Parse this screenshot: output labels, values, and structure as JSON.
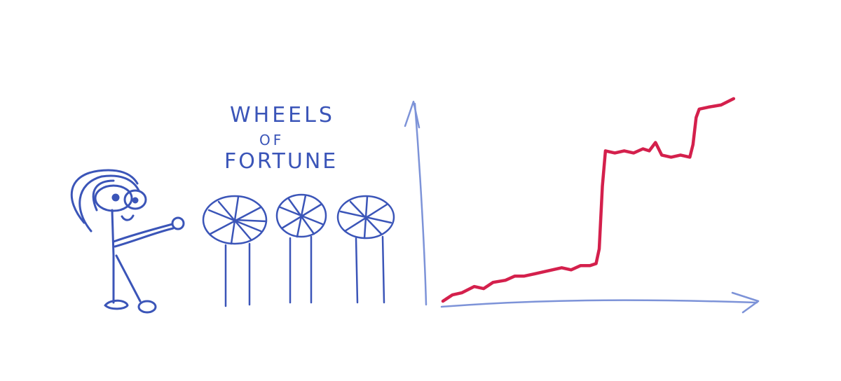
{
  "sketch": {
    "title_lines": [
      "WHEELS",
      "OF",
      "FORTUNE"
    ]
  },
  "colors": {
    "ink_blue": "#3b55b8",
    "axis_blue": "#7d93d8",
    "curve_red": "#d4204c",
    "paper": "#ffffff"
  },
  "icons": [
    "stick-figure",
    "wheel-icon",
    "wheel-icon",
    "wheel-icon",
    "up-arrow-icon",
    "right-arrow-icon"
  ],
  "chart_data": {
    "type": "line",
    "title": "",
    "xlabel": "",
    "ylabel": "",
    "grid": false,
    "legend": "none",
    "xlim": [
      0,
      100
    ],
    "ylim": [
      0,
      100
    ],
    "series": [
      {
        "x": [
          0,
          3,
          6,
          10,
          13,
          16,
          20,
          23,
          26,
          29,
          32,
          35,
          38,
          41,
          44,
          47,
          49,
          50,
          51,
          52,
          55,
          58,
          61,
          64,
          66,
          68,
          70,
          73,
          76,
          79,
          80,
          81,
          82,
          85,
          89,
          93
        ],
        "y": [
          0,
          3,
          4,
          7,
          6,
          9,
          10,
          12,
          12,
          13,
          14,
          15,
          16,
          15,
          17,
          17,
          18,
          25,
          55,
          72,
          71,
          72,
          71,
          73,
          72,
          76,
          70,
          69,
          70,
          69,
          75,
          88,
          92,
          93,
          94,
          97
        ]
      }
    ]
  }
}
